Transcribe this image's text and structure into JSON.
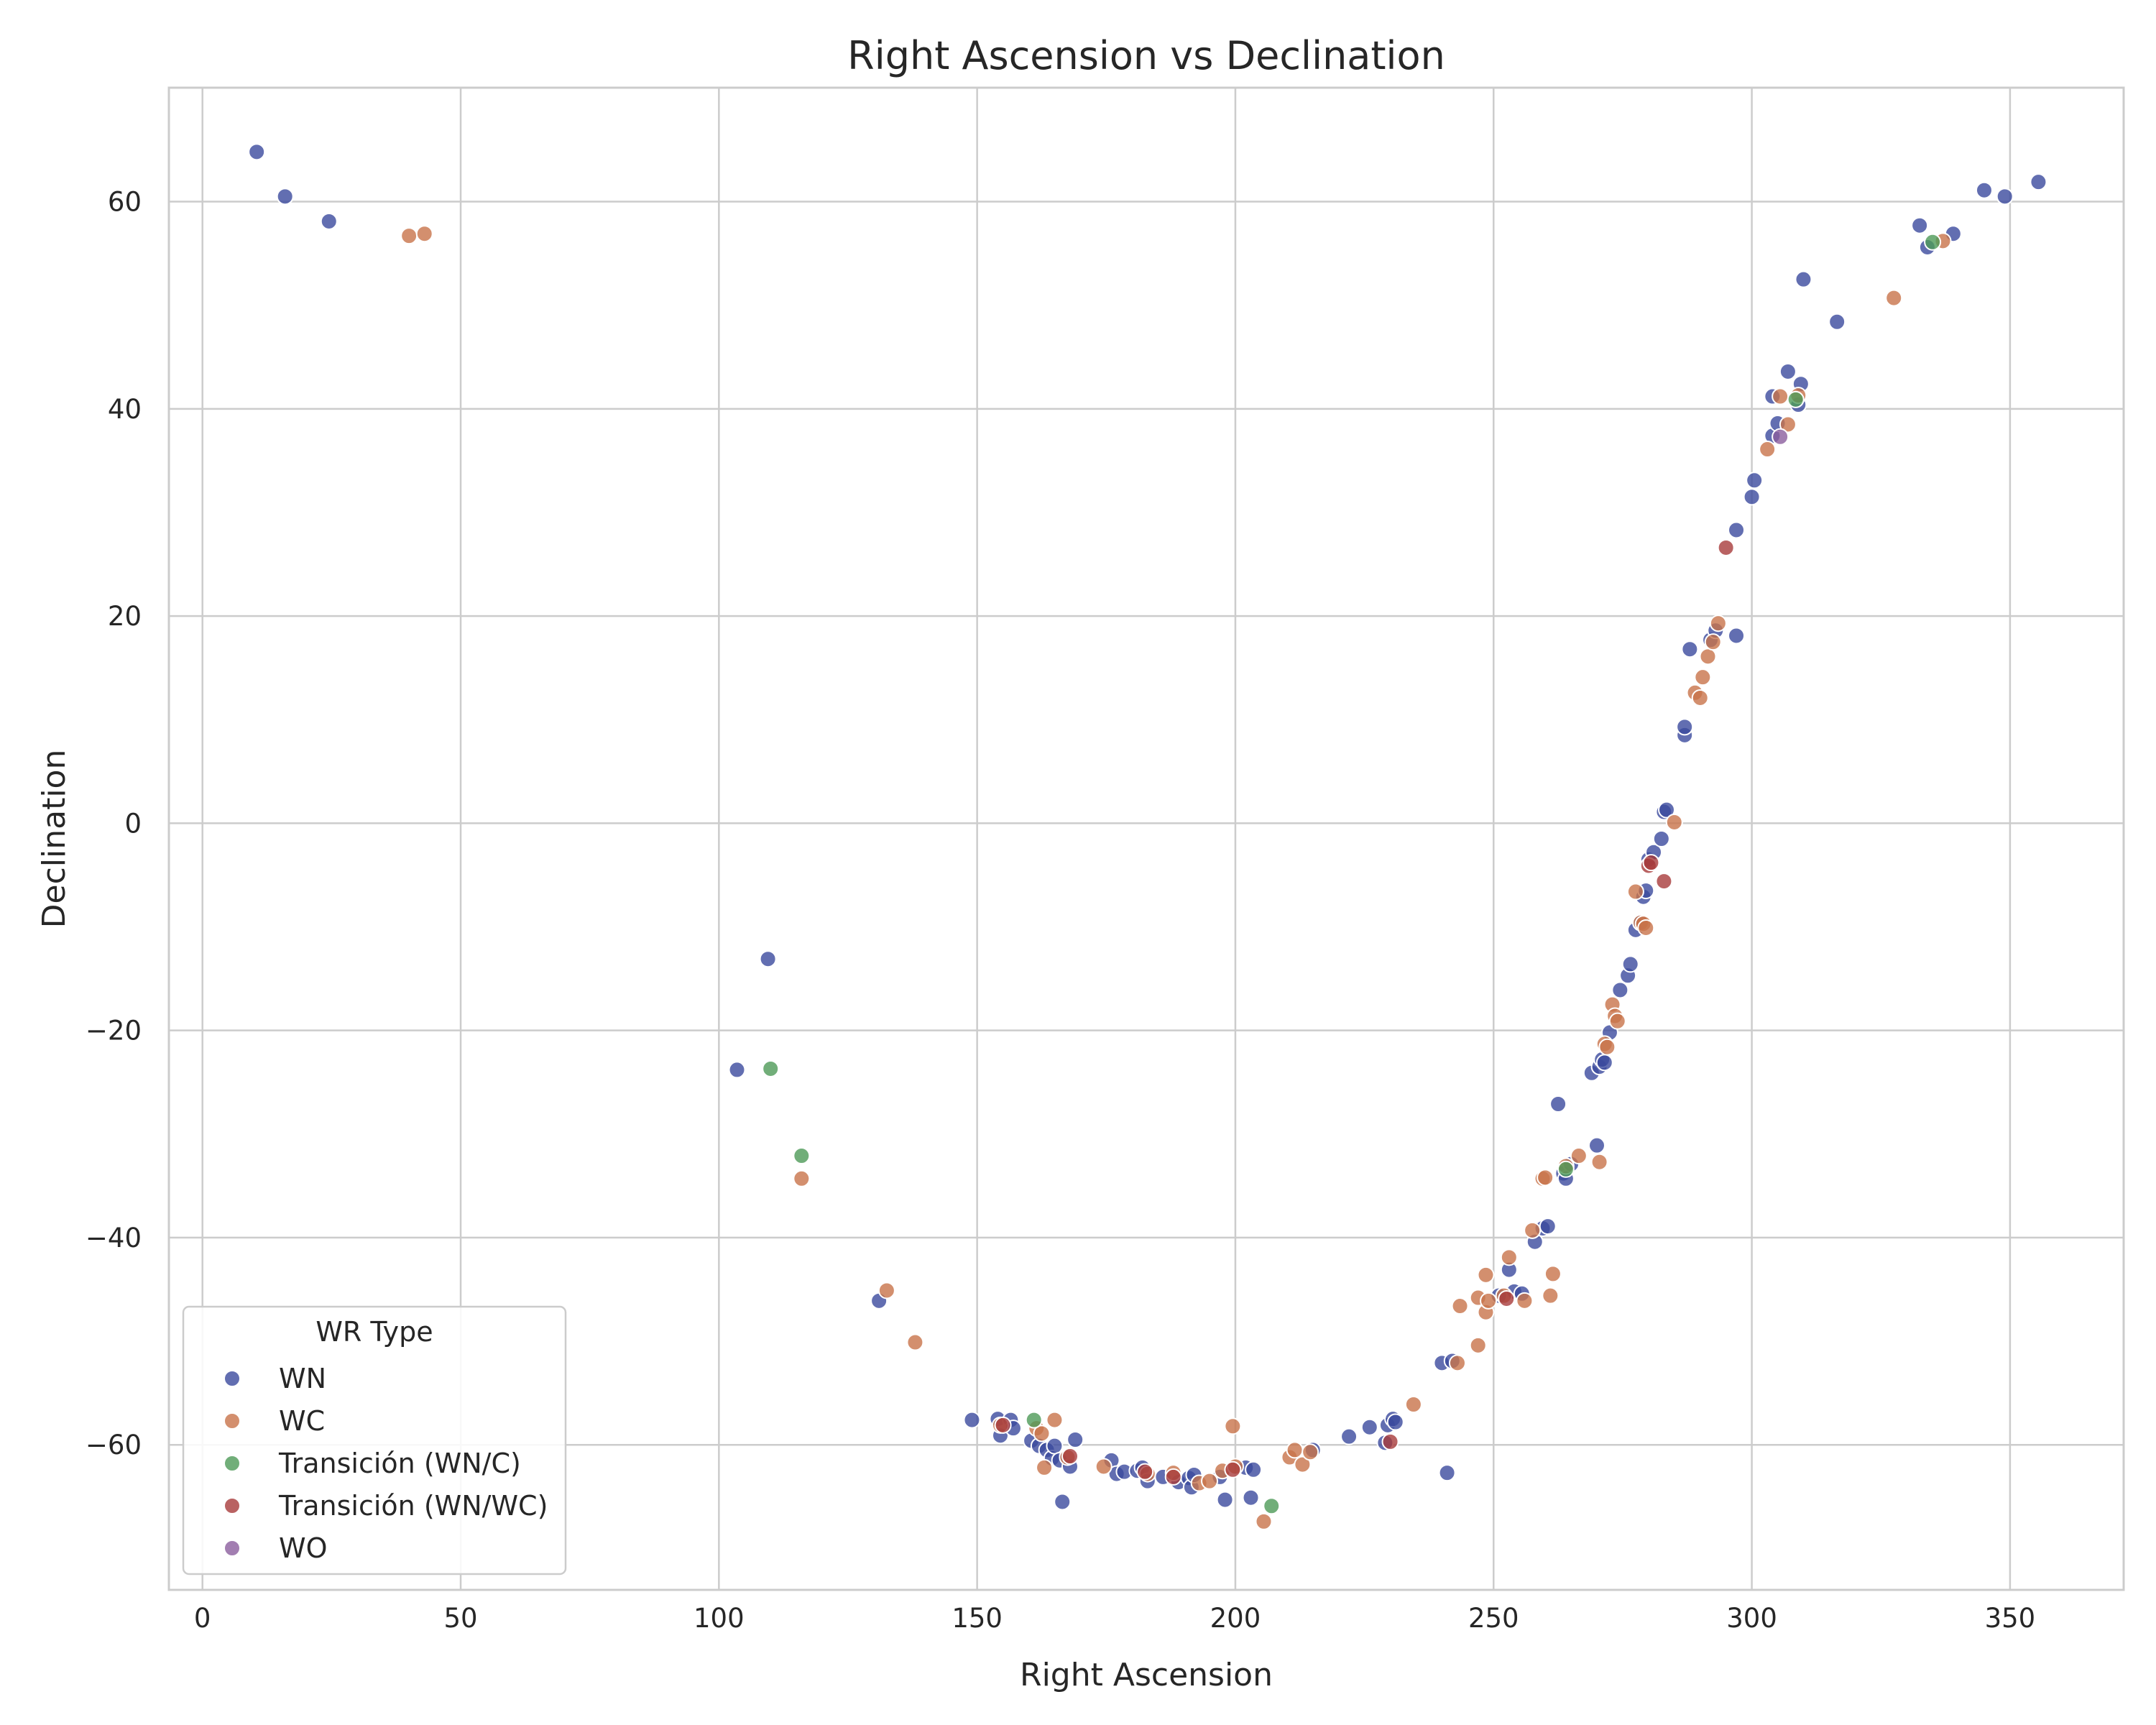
{
  "chart_data": {
    "type": "scatter",
    "title": "Right Ascension vs Declination",
    "xlabel": "Right Ascension",
    "ylabel": "Declination",
    "xlim": [
      -6.5,
      372
    ],
    "ylim": [
      -74,
      71
    ],
    "xticks": [
      {
        "value": 0,
        "label": "0"
      },
      {
        "value": 50,
        "label": "50"
      },
      {
        "value": 100,
        "label": "100"
      },
      {
        "value": 150,
        "label": "150"
      },
      {
        "value": 200,
        "label": "200"
      },
      {
        "value": 250,
        "label": "250"
      },
      {
        "value": 300,
        "label": "300"
      },
      {
        "value": 350,
        "label": "350"
      }
    ],
    "yticks": [
      {
        "value": -60,
        "label": "−60"
      },
      {
        "value": -40,
        "label": "−40"
      },
      {
        "value": -20,
        "label": "−20"
      },
      {
        "value": 0,
        "label": "0"
      },
      {
        "value": 20,
        "label": "20"
      },
      {
        "value": 40,
        "label": "40"
      },
      {
        "value": 60,
        "label": "60"
      }
    ],
    "grid": true,
    "legend": {
      "title": "WR Type",
      "position": "lower-left"
    },
    "series": [
      {
        "name": "WN",
        "color": "#3b4a9e",
        "points": [
          [
            10.5,
            64.8
          ],
          [
            16,
            60.5
          ],
          [
            24.5,
            58.1
          ],
          [
            103.5,
            -23.8
          ],
          [
            109.5,
            -13.1
          ],
          [
            131,
            -46.1
          ],
          [
            149,
            -57.6
          ],
          [
            154,
            -57.5
          ],
          [
            154.5,
            -59.1
          ],
          [
            156.5,
            -57.6
          ],
          [
            157,
            -58.4
          ],
          [
            160.5,
            -59.6
          ],
          [
            162,
            -60.1
          ],
          [
            163.5,
            -60.5
          ],
          [
            164.5,
            -61.3
          ],
          [
            165,
            -60.1
          ],
          [
            166,
            -61.5
          ],
          [
            166.5,
            -65.5
          ],
          [
            168,
            -62.1
          ],
          [
            169,
            -59.5
          ],
          [
            176,
            -61.5
          ],
          [
            177,
            -62.8
          ],
          [
            178.5,
            -62.6
          ],
          [
            181,
            -62.5
          ],
          [
            182,
            -62.2
          ],
          [
            183,
            -63.5
          ],
          [
            186,
            -63.1
          ],
          [
            189,
            -63.6
          ],
          [
            191,
            -63.2
          ],
          [
            191.5,
            -64.1
          ],
          [
            192,
            -62.9
          ],
          [
            197,
            -63.1
          ],
          [
            198,
            -65.3
          ],
          [
            202,
            -62.2
          ],
          [
            203,
            -65.1
          ],
          [
            203.5,
            -62.4
          ],
          [
            215,
            -60.5
          ],
          [
            222,
            -59.2
          ],
          [
            226,
            -58.3
          ],
          [
            229,
            -59.8
          ],
          [
            229.5,
            -58.1
          ],
          [
            230.5,
            -57.5
          ],
          [
            231,
            -57.8
          ],
          [
            240,
            -52.1
          ],
          [
            241,
            -62.7
          ],
          [
            242,
            -51.9
          ],
          [
            251,
            -45.6
          ],
          [
            253,
            -43.1
          ],
          [
            254,
            -45.2
          ],
          [
            255.5,
            -45.4
          ],
          [
            258,
            -40.4
          ],
          [
            259.5,
            -39.1
          ],
          [
            260.5,
            -38.9
          ],
          [
            262.5,
            -27.1
          ],
          [
            263.5,
            -33.8
          ],
          [
            264,
            -34.3
          ],
          [
            265,
            -32.9
          ],
          [
            269,
            -24.1
          ],
          [
            270,
            -31.1
          ],
          [
            270.5,
            -23.5
          ],
          [
            271,
            -22.8
          ],
          [
            271.5,
            -23.1
          ],
          [
            272.5,
            -20.2
          ],
          [
            274.5,
            -16.1
          ],
          [
            276,
            -14.7
          ],
          [
            276.5,
            -13.6
          ],
          [
            277.5,
            -10.3
          ],
          [
            278.5,
            -9.6
          ],
          [
            279,
            -7.1
          ],
          [
            279.5,
            -6.5
          ],
          [
            280,
            -3.5
          ],
          [
            281,
            -2.8
          ],
          [
            282.5,
            -1.5
          ],
          [
            283,
            1.1
          ],
          [
            283.5,
            1.3
          ],
          [
            287,
            8.5
          ],
          [
            287,
            9.3
          ],
          [
            288,
            16.8
          ],
          [
            292,
            17.7
          ],
          [
            293,
            18.6
          ],
          [
            297,
            18.1
          ],
          [
            297,
            28.3
          ],
          [
            300,
            31.5
          ],
          [
            300.5,
            33.1
          ],
          [
            304,
            41.2
          ],
          [
            304,
            37.4
          ],
          [
            305,
            38.6
          ],
          [
            307,
            43.6
          ],
          [
            309,
            40.4
          ],
          [
            309.5,
            42.4
          ],
          [
            310,
            52.5
          ],
          [
            316.5,
            48.4
          ],
          [
            332.5,
            57.7
          ],
          [
            334,
            55.6
          ],
          [
            339,
            56.9
          ],
          [
            345,
            61.1
          ],
          [
            349,
            60.5
          ],
          [
            355.5,
            61.9
          ]
        ]
      },
      {
        "name": "WC",
        "color": "#c8734a",
        "points": [
          [
            40,
            56.7
          ],
          [
            43,
            56.9
          ],
          [
            116,
            -34.3
          ],
          [
            132.5,
            -45.1
          ],
          [
            138,
            -50.1
          ],
          [
            154.5,
            -58.1
          ],
          [
            161.5,
            -58.4
          ],
          [
            162.5,
            -58.9
          ],
          [
            163,
            -62.2
          ],
          [
            165,
            -57.6
          ],
          [
            167.5,
            -61.2
          ],
          [
            174.5,
            -62.1
          ],
          [
            183,
            -62.8
          ],
          [
            188,
            -62.7
          ],
          [
            193,
            -63.7
          ],
          [
            195,
            -63.5
          ],
          [
            197.5,
            -62.5
          ],
          [
            199.5,
            -58.2
          ],
          [
            200,
            -62.1
          ],
          [
            205.5,
            -67.4
          ],
          [
            210.5,
            -61.2
          ],
          [
            211.5,
            -60.5
          ],
          [
            213,
            -61.9
          ],
          [
            214.5,
            -60.7
          ],
          [
            234.5,
            -56.1
          ],
          [
            243,
            -52.1
          ],
          [
            243.5,
            -46.6
          ],
          [
            247,
            -50.4
          ],
          [
            247,
            -45.8
          ],
          [
            248.5,
            -47.2
          ],
          [
            248.5,
            -43.6
          ],
          [
            249,
            -46.1
          ],
          [
            252,
            -45.6
          ],
          [
            253,
            -41.9
          ],
          [
            256,
            -46.1
          ],
          [
            257.5,
            -39.3
          ],
          [
            259.5,
            -34.3
          ],
          [
            260,
            -34.2
          ],
          [
            261,
            -45.6
          ],
          [
            261.5,
            -43.5
          ],
          [
            264,
            -33.1
          ],
          [
            266.5,
            -32.1
          ],
          [
            270.5,
            -32.7
          ],
          [
            271.5,
            -21.3
          ],
          [
            272,
            -21.6
          ],
          [
            273,
            -17.5
          ],
          [
            273.5,
            -18.6
          ],
          [
            274,
            -19.1
          ],
          [
            277.5,
            -6.6
          ],
          [
            278.5,
            -9.6
          ],
          [
            279,
            -9.7
          ],
          [
            279.5,
            -10.1
          ],
          [
            285,
            0.1
          ],
          [
            289,
            12.6
          ],
          [
            290,
            12.1
          ],
          [
            290.5,
            14.1
          ],
          [
            291.5,
            16.1
          ],
          [
            292.5,
            17.5
          ],
          [
            293.5,
            19.3
          ],
          [
            303,
            36.1
          ],
          [
            305.5,
            41.2
          ],
          [
            307,
            38.5
          ],
          [
            309,
            41.3
          ],
          [
            327.5,
            50.7
          ],
          [
            337,
            56.2
          ]
        ]
      },
      {
        "name": "Transición (WN/C)",
        "color": "#4e9a58",
        "points": [
          [
            110,
            -23.7
          ],
          [
            116,
            -32.1
          ],
          [
            161,
            -57.6
          ],
          [
            207,
            -65.9
          ],
          [
            264,
            -33.4
          ],
          [
            308.5,
            40.9
          ],
          [
            335,
            56.1
          ]
        ]
      },
      {
        "name": "Transición (WN/WC)",
        "color": "#a83b3b",
        "points": [
          [
            155,
            -58.1
          ],
          [
            168,
            -61.1
          ],
          [
            182.5,
            -62.6
          ],
          [
            188,
            -63.1
          ],
          [
            199.5,
            -62.4
          ],
          [
            230,
            -59.7
          ],
          [
            252.5,
            -45.9
          ],
          [
            280,
            -4.1
          ],
          [
            280.5,
            -3.8
          ],
          [
            283,
            -5.6
          ],
          [
            295,
            26.6
          ]
        ]
      },
      {
        "name": "WO",
        "color": "#8b5e9e",
        "points": [
          [
            305.5,
            37.3
          ]
        ]
      }
    ]
  }
}
